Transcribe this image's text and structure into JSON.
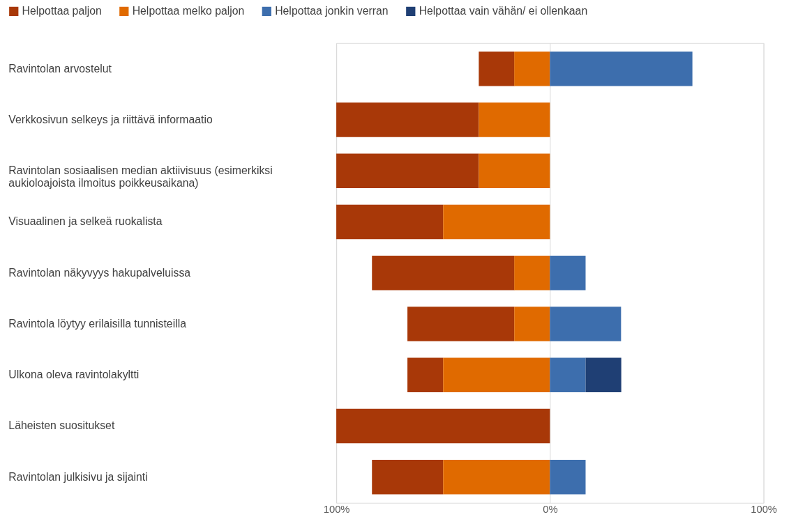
{
  "chart_data": {
    "type": "bar",
    "orientation": "horizontal",
    "legend": "top",
    "grid": "x",
    "categories": [
      "Ravintolan arvostelut",
      "Verkkosivun selkeys ja riittävä informaatio",
      "Ravintolan sosiaalisen median aktiivisuus (esimerkiksi\naukioloajoista ilmoitus poikkeusaikana)",
      "Visuaalinen ja selkeä ruokalista",
      "Ravintolan näkyvyys hakupalveluissa",
      "Ravintola löytyy erilaisilla tunnisteilla",
      "Ulkona oleva ravintolakyltti",
      "Läheisten suositukset",
      "Ravintolan julkisivu ja sijainti"
    ],
    "xlim": [
      -100,
      100
    ],
    "xticks": [
      {
        "value": -100,
        "label": "100%"
      },
      {
        "value": 0,
        "label": "0%"
      },
      {
        "value": 100,
        "label": "100%"
      }
    ],
    "series": [
      {
        "name": "Helpottaa paljon",
        "color": "#a83808",
        "base": [
          -33.3,
          -100,
          -100,
          -100,
          -83.3,
          -66.7,
          -66.7,
          -100,
          -83.3
        ],
        "values": [
          16.7,
          66.7,
          66.7,
          50,
          66.7,
          50,
          16.7,
          100,
          33.3
        ]
      },
      {
        "name": "Helpottaa melko paljon",
        "color": "#e06a00",
        "base": [
          -16.7,
          -33.3,
          -33.3,
          -50,
          -16.7,
          -16.7,
          -50,
          null,
          -50
        ],
        "values": [
          16.7,
          33.3,
          33.3,
          50,
          16.7,
          16.7,
          50,
          null,
          50
        ]
      },
      {
        "name": "Helpottaa jonkin verran",
        "color": "#3d6ead",
        "base": [
          0,
          null,
          null,
          null,
          0,
          0,
          0,
          null,
          0
        ],
        "values": [
          66.7,
          null,
          null,
          null,
          16.7,
          33.3,
          16.7,
          null,
          16.7
        ]
      },
      {
        "name": "Helpottaa vain vähän/ ei ollenkaan",
        "color": "#1f3f74",
        "base": [
          null,
          null,
          null,
          null,
          null,
          null,
          16.7,
          null,
          null
        ],
        "values": [
          null,
          null,
          null,
          null,
          null,
          null,
          16.7,
          null,
          null
        ]
      }
    ]
  }
}
